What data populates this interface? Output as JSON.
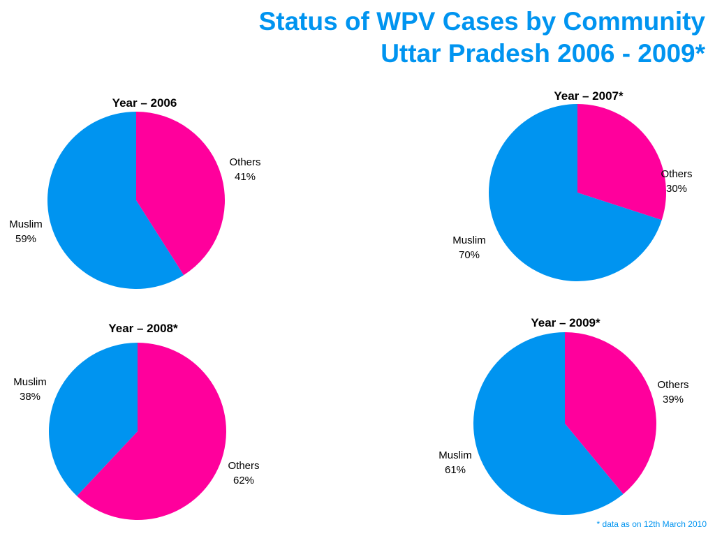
{
  "slide": {
    "title_line1": "Status of WPV Cases by Community",
    "title_line2": "Uttar Pradesh 2006 - 2009*",
    "footnote": "* data as on 12th March 2010"
  },
  "colors": {
    "title": "#0094f0",
    "Muslim": "#0094f0",
    "Others": "#ff009c"
  },
  "chart_data": [
    {
      "type": "pie",
      "title": "Year – 2006",
      "slices": [
        {
          "label": "Others",
          "value": 41,
          "display": "41%"
        },
        {
          "label": "Muslim",
          "value": 59,
          "display": "59%"
        }
      ]
    },
    {
      "type": "pie",
      "title": "Year – 2007*",
      "slices": [
        {
          "label": "Others",
          "value": 30,
          "display": "30%"
        },
        {
          "label": "Muslim",
          "value": 70,
          "display": "70%"
        }
      ]
    },
    {
      "type": "pie",
      "title": "Year – 2008*",
      "slices": [
        {
          "label": "Others",
          "value": 62,
          "display": "62%"
        },
        {
          "label": "Muslim",
          "value": 38,
          "display": "38%"
        }
      ]
    },
    {
      "type": "pie",
      "title": "Year – 2009*",
      "slices": [
        {
          "label": "Others",
          "value": 39,
          "display": "39%"
        },
        {
          "label": "Muslim",
          "value": 61,
          "display": "61%"
        }
      ]
    }
  ]
}
